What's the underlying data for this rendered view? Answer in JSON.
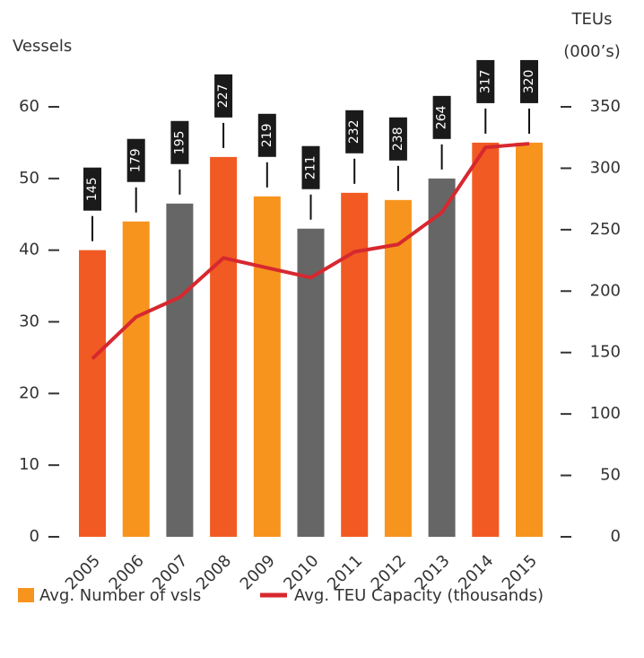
{
  "chart_data": {
    "type": "bar_line",
    "ylabel": "Vessels",
    "y2label": [
      "TEUs",
      "(000’s)"
    ],
    "categories": [
      "2005",
      "2006",
      "2007",
      "2008",
      "2009",
      "2010",
      "2011",
      "2012",
      "2013",
      "2014",
      "2015"
    ],
    "series": [
      {
        "name": "Avg. Number of vsls",
        "type": "bar",
        "color": "#f7941d",
        "colors": [
          "#f15a22",
          "#f7941d",
          "#666666",
          "#f15a22",
          "#f7941d",
          "#666666",
          "#f15a22",
          "#f7941d",
          "#666666",
          "#f15a22",
          "#f7941d"
        ],
        "values": [
          40,
          44,
          46.5,
          53,
          47.5,
          43,
          48,
          47,
          50,
          55,
          55
        ]
      },
      {
        "name": "Avg. TEU Capacity (thousands)",
        "type": "line",
        "axis": "y2",
        "color": "#d7282f",
        "values": [
          145,
          179,
          195,
          227,
          219,
          211,
          232,
          238,
          264,
          317,
          320
        ]
      }
    ],
    "ylim": [
      0,
      60
    ],
    "yticks": [
      0,
      10,
      20,
      30,
      40,
      50,
      60
    ],
    "y2lim": [
      0,
      350
    ],
    "y2ticks": [
      0,
      50,
      100,
      150,
      200,
      250,
      300,
      350
    ],
    "grid": false
  }
}
